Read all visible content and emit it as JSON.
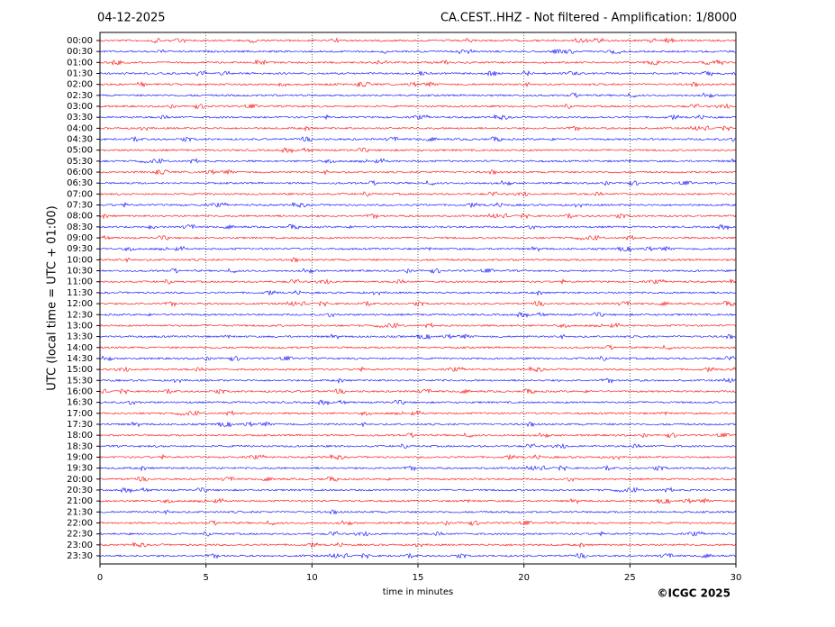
{
  "chart_data": {
    "type": "helicorder",
    "title": "04-12-2025",
    "subtitle": "CA.CEST..HHZ - Not filtered - Amplification: 1/8000",
    "ylabel": "UTC (local time = UTC + 01:00)",
    "xlabel": "time in minutes",
    "credit": "©ICGC 2025",
    "categories": [
      "00:00",
      "00:30",
      "01:00",
      "01:30",
      "02:00",
      "02:30",
      "03:00",
      "03:30",
      "04:00",
      "04:30",
      "05:00",
      "05:30",
      "06:00",
      "06:30",
      "07:00",
      "07:30",
      "08:00",
      "08:30",
      "09:00",
      "09:30",
      "10:00",
      "10:30",
      "11:00",
      "11:30",
      "12:00",
      "12:30",
      "13:00",
      "13:30",
      "14:00",
      "14:30",
      "15:00",
      "15:30",
      "16:00",
      "16:30",
      "17:00",
      "17:30",
      "18:00",
      "18:30",
      "19:00",
      "19:30",
      "20:00",
      "20:30",
      "21:00",
      "21:30",
      "22:00",
      "22:30",
      "23:00",
      "23:30"
    ],
    "colors": [
      "#ff0000",
      "#0000ff"
    ],
    "xlim": [
      0,
      30
    ],
    "xticks": [
      0,
      5,
      10,
      15,
      20,
      25,
      30
    ],
    "grid": true
  }
}
